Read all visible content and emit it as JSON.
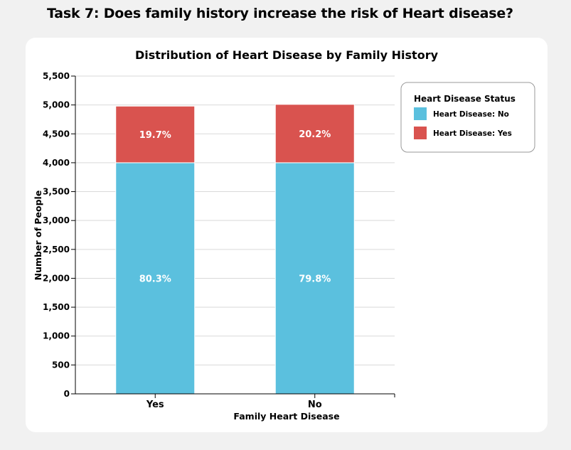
{
  "page": {
    "task_title": "Task 7: Does family history increase the risk of Heart disease?"
  },
  "chart_data": {
    "type": "bar",
    "stacked": true,
    "title": "Distribution of Heart Disease by Family History",
    "xlabel": "Family Heart Disease",
    "ylabel": "Number of People",
    "categories": [
      "Yes",
      "No"
    ],
    "ylim": [
      0,
      5500
    ],
    "yticks": [
      0,
      500,
      1000,
      1500,
      2000,
      2500,
      3000,
      3500,
      4000,
      4500,
      5000,
      5500
    ],
    "ytick_labels": [
      "0",
      "500",
      "1,000",
      "1,500",
      "2,000",
      "2,500",
      "3,000",
      "3,500",
      "4,000",
      "4,500",
      "5,000",
      "5,500"
    ],
    "grid": true,
    "series": [
      {
        "name": "Heart Disease: No",
        "color": "#5bc0de",
        "values": [
          4000,
          4000
        ],
        "labels": [
          "80.3%",
          "79.8%"
        ]
      },
      {
        "name": "Heart Disease: Yes",
        "color": "#d9534f",
        "values": [
          980,
          1010
        ],
        "labels": [
          "19.7%",
          "20.2%"
        ]
      }
    ],
    "legend": {
      "title": "Heart Disease Status",
      "position": "top-right"
    }
  }
}
